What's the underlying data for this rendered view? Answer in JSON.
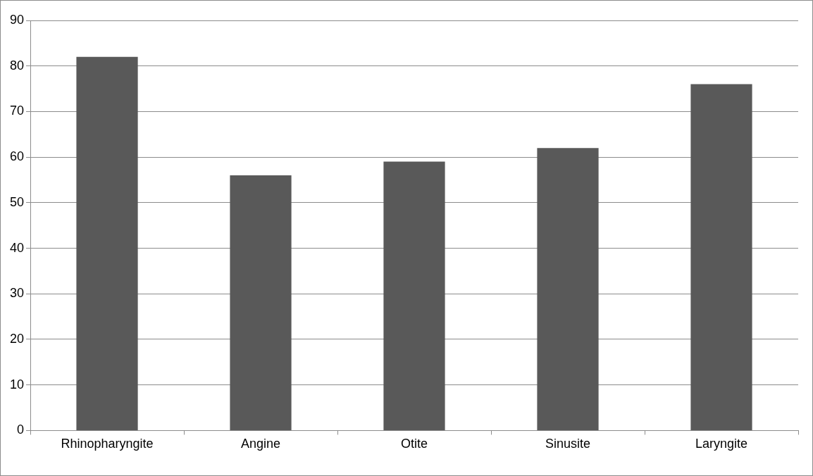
{
  "chart_data": {
    "type": "bar",
    "categories": [
      "Rhinopharyngite",
      "Angine",
      "Otite",
      "Sinusite",
      "Laryngite"
    ],
    "values": [
      82,
      56,
      59,
      62,
      76
    ],
    "color": "#595959",
    "ylim": [
      0,
      90
    ],
    "yticks": [
      0,
      10,
      20,
      30,
      40,
      50,
      60,
      70,
      80,
      90
    ],
    "grid": "y"
  }
}
